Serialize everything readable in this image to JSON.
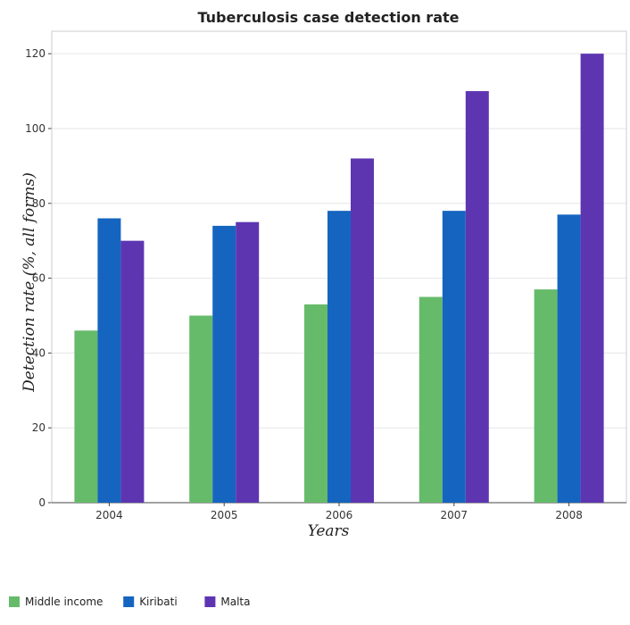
{
  "chart_data": {
    "type": "bar",
    "title": "Tuberculosis case detection rate",
    "xlabel": "Years",
    "ylabel": "Detection rate (%, all forms)",
    "categories": [
      "2004",
      "2005",
      "2006",
      "2007",
      "2008"
    ],
    "series": [
      {
        "name": "Middle income",
        "color": "#66bb6a",
        "values": [
          46,
          50,
          53,
          55,
          57
        ]
      },
      {
        "name": "Kiribati",
        "color": "#1565c0",
        "values": [
          76,
          74,
          78,
          78,
          77
        ]
      },
      {
        "name": "Malta",
        "color": "#5e35b1",
        "values": [
          70,
          75,
          92,
          110,
          120
        ]
      }
    ],
    "ylim": [
      0,
      126
    ],
    "yticks": [
      0,
      20,
      40,
      60,
      80,
      100,
      120
    ],
    "grid": true,
    "legend_position": "bottom-left"
  }
}
